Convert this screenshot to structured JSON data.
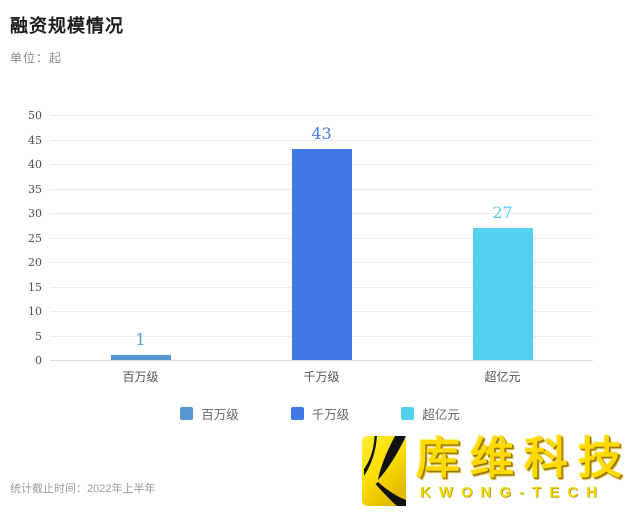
{
  "header": {
    "title": "融资规模情况",
    "unit_label": "单位：起"
  },
  "chart_data": {
    "type": "bar",
    "title": "融资规模情况",
    "unit": "起",
    "categories": [
      "百万级",
      "千万级",
      "超亿元"
    ],
    "values": [
      1,
      43,
      27
    ],
    "bar_colors": [
      "#5496d4",
      "#4178e3",
      "#55d1f0"
    ],
    "value_label_colors": [
      "#5b9bd5",
      "#4178e3",
      "#4fc9ea"
    ],
    "ylim": [
      0,
      50
    ],
    "ytick_interval": 5,
    "grid": true,
    "legend": [
      "百万级",
      "千万级",
      "超亿元"
    ],
    "legend_position": "bottom",
    "xlabel": "",
    "ylabel": ""
  },
  "footer": {
    "note": "统计截止时间：2022年上半年"
  },
  "logo": {
    "cn": "库维科技",
    "en": "KWONG-TECH",
    "accent_color": "#ffd900"
  }
}
